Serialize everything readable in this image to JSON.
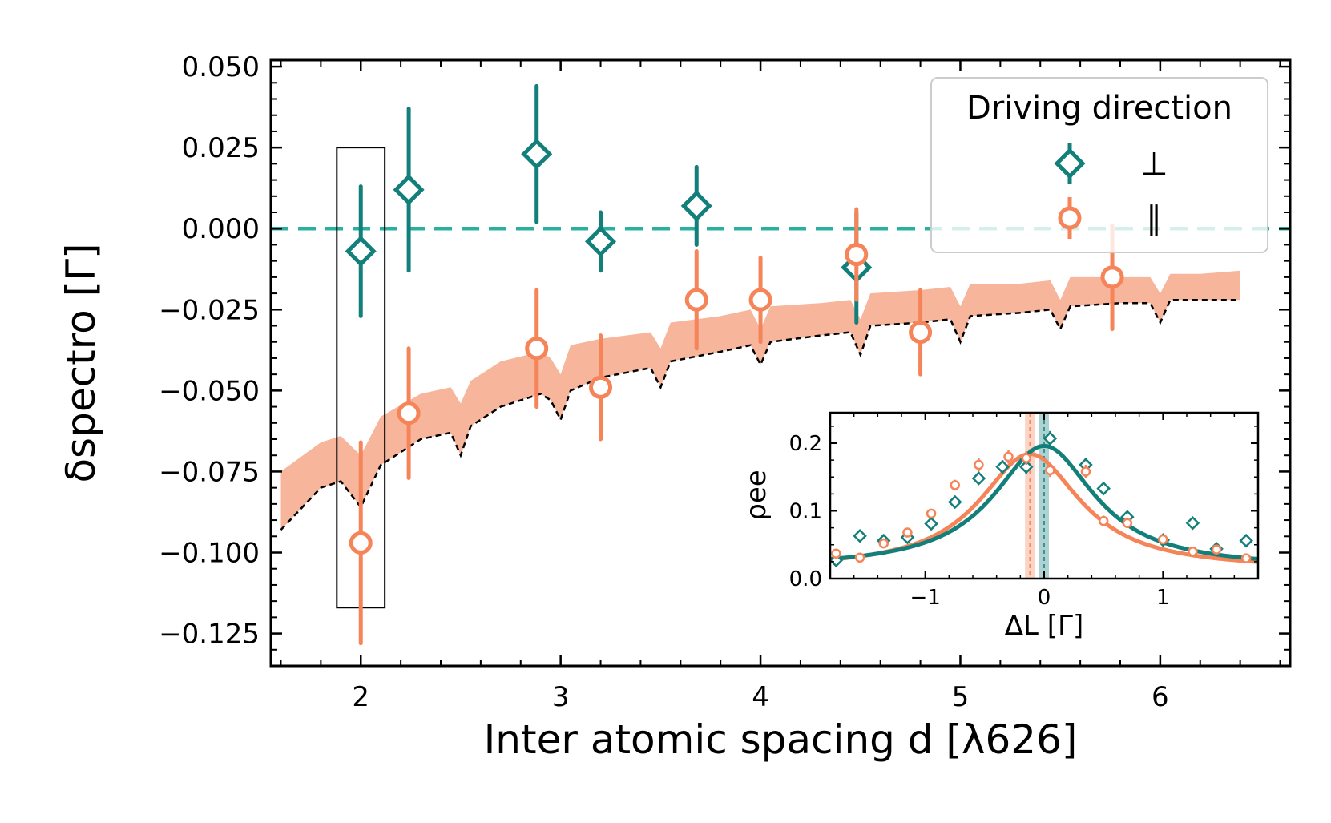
{
  "chart_data": [
    {
      "type": "scatter",
      "title": "",
      "xlabel": "Inter atomic spacing d [λ626]",
      "ylabel": "δspectro [Γ]",
      "xlim": [
        1.55,
        6.65
      ],
      "ylim": [
        -0.135,
        0.052
      ],
      "xticks": [
        "2",
        "3",
        "4",
        "5",
        "6"
      ],
      "yticks": [
        "0.050",
        "0.025",
        "0.000",
        "−0.025",
        "−0.050",
        "−0.075",
        "−0.100",
        "−0.125"
      ],
      "legend": {
        "title": "Driving direction",
        "placement": "top-right",
        "entries": [
          "⊥",
          "∥"
        ]
      },
      "series": [
        {
          "name": "⊥",
          "color": "#137f7a",
          "marker": "diamond",
          "points": [
            {
              "x": 2.0,
              "y": -0.007,
              "err": 0.02
            },
            {
              "x": 2.24,
              "y": 0.012,
              "err": 0.025
            },
            {
              "x": 2.88,
              "y": 0.023,
              "err": 0.021
            },
            {
              "x": 3.2,
              "y": -0.004,
              "err": 0.009
            },
            {
              "x": 3.68,
              "y": 0.007,
              "err": 0.012
            },
            {
              "x": 4.48,
              "y": -0.012,
              "err": 0.017
            }
          ]
        },
        {
          "name": "∥",
          "color": "#f58459",
          "marker": "circle",
          "points": [
            {
              "x": 2.0,
              "y": -0.097,
              "err": 0.031
            },
            {
              "x": 2.24,
              "y": -0.057,
              "err": 0.02
            },
            {
              "x": 2.88,
              "y": -0.037,
              "err": 0.018
            },
            {
              "x": 3.2,
              "y": -0.049,
              "err": 0.016
            },
            {
              "x": 3.68,
              "y": -0.022,
              "err": 0.015
            },
            {
              "x": 4.0,
              "y": -0.022,
              "err": 0.013
            },
            {
              "x": 4.48,
              "y": -0.008,
              "err": 0.014
            },
            {
              "x": 4.8,
              "y": -0.032,
              "err": 0.013
            },
            {
              "x": 5.76,
              "y": -0.015,
              "err": 0.016
            }
          ]
        }
      ],
      "reference_line": {
        "y": 0.0,
        "style": "dashed",
        "color": "#2bb0a0"
      },
      "theory_band": {
        "color": "#f7b196",
        "x": [
          1.6,
          1.8,
          1.9,
          2.0,
          2.1,
          2.3,
          2.45,
          2.5,
          2.55,
          2.7,
          2.9,
          2.95,
          3.0,
          3.05,
          3.2,
          3.45,
          3.5,
          3.55,
          3.8,
          3.95,
          4.0,
          4.05,
          4.3,
          4.45,
          4.5,
          4.55,
          4.8,
          4.95,
          5.0,
          5.05,
          5.3,
          5.45,
          5.5,
          5.55,
          5.8,
          5.95,
          6.0,
          6.05,
          6.2,
          6.4
        ],
        "lower": [
          -0.093,
          -0.08,
          -0.078,
          -0.086,
          -0.073,
          -0.065,
          -0.063,
          -0.07,
          -0.061,
          -0.055,
          -0.051,
          -0.053,
          -0.059,
          -0.05,
          -0.046,
          -0.043,
          -0.049,
          -0.041,
          -0.038,
          -0.036,
          -0.042,
          -0.035,
          -0.033,
          -0.032,
          -0.039,
          -0.03,
          -0.029,
          -0.028,
          -0.035,
          -0.027,
          -0.026,
          -0.025,
          -0.031,
          -0.024,
          -0.023,
          -0.023,
          -0.029,
          -0.022,
          -0.022,
          -0.022
        ],
        "upper": [
          -0.075,
          -0.066,
          -0.064,
          -0.07,
          -0.058,
          -0.051,
          -0.049,
          -0.054,
          -0.047,
          -0.041,
          -0.038,
          -0.04,
          -0.045,
          -0.036,
          -0.034,
          -0.032,
          -0.037,
          -0.029,
          -0.027,
          -0.025,
          -0.031,
          -0.024,
          -0.023,
          -0.022,
          -0.028,
          -0.02,
          -0.019,
          -0.018,
          -0.024,
          -0.017,
          -0.017,
          -0.016,
          -0.022,
          -0.015,
          -0.015,
          -0.015,
          -0.02,
          -0.014,
          -0.014,
          -0.013
        ]
      },
      "theory_curve": {
        "style": "dashed",
        "color": "#000000",
        "x": [
          1.6,
          1.8,
          1.9,
          2.0,
          2.1,
          2.3,
          2.45,
          2.5,
          2.55,
          2.7,
          2.9,
          2.95,
          3.0,
          3.05,
          3.2,
          3.45,
          3.5,
          3.55,
          3.8,
          3.95,
          4.0,
          4.05,
          4.3,
          4.45,
          4.5,
          4.55,
          4.8,
          4.95,
          5.0,
          5.05,
          5.3,
          5.45,
          5.5,
          5.55,
          5.8,
          5.95,
          6.0,
          6.05,
          6.2,
          6.4
        ],
        "y": [
          -0.093,
          -0.08,
          -0.078,
          -0.086,
          -0.073,
          -0.065,
          -0.063,
          -0.07,
          -0.061,
          -0.055,
          -0.051,
          -0.053,
          -0.059,
          -0.05,
          -0.046,
          -0.043,
          -0.049,
          -0.041,
          -0.038,
          -0.036,
          -0.042,
          -0.035,
          -0.033,
          -0.032,
          -0.039,
          -0.03,
          -0.029,
          -0.028,
          -0.035,
          -0.027,
          -0.026,
          -0.025,
          -0.031,
          -0.024,
          -0.023,
          -0.023,
          -0.029,
          -0.022,
          -0.022,
          -0.022
        ]
      },
      "highlight_box": {
        "x": [
          1.88,
          2.12
        ],
        "y": [
          -0.117,
          0.025
        ]
      }
    },
    {
      "type": "scatter",
      "title": "",
      "xlabel": "ΔL [Γ]",
      "ylabel": "ρee",
      "xlim": [
        -1.8,
        1.8
      ],
      "ylim": [
        0.0,
        0.245
      ],
      "xticks": [
        "−1",
        "0",
        "1"
      ],
      "yticks": [
        "0.0",
        "0.1",
        "0.2"
      ],
      "series": [
        {
          "name": "⊥",
          "color": "#137f7a",
          "marker": "diamond",
          "points": [
            {
              "x": -1.75,
              "y": 0.027,
              "err": 0.006
            },
            {
              "x": -1.55,
              "y": 0.063,
              "err": 0.006
            },
            {
              "x": -1.35,
              "y": 0.056,
              "err": 0.006
            },
            {
              "x": -1.15,
              "y": 0.061,
              "err": 0.006
            },
            {
              "x": -0.95,
              "y": 0.081,
              "err": 0.007
            },
            {
              "x": -0.75,
              "y": 0.113,
              "err": 0.008
            },
            {
              "x": -0.55,
              "y": 0.148,
              "err": 0.009
            },
            {
              "x": -0.35,
              "y": 0.165,
              "err": 0.01
            },
            {
              "x": -0.15,
              "y": 0.165,
              "err": 0.01
            },
            {
              "x": 0.05,
              "y": 0.207,
              "err": 0.011
            },
            {
              "x": 0.35,
              "y": 0.168,
              "err": 0.01
            },
            {
              "x": 0.5,
              "y": 0.133,
              "err": 0.009
            },
            {
              "x": 0.7,
              "y": 0.091,
              "err": 0.008
            },
            {
              "x": 1.0,
              "y": 0.057,
              "err": 0.006
            },
            {
              "x": 1.25,
              "y": 0.082,
              "err": 0.007
            },
            {
              "x": 1.45,
              "y": 0.044,
              "err": 0.006
            },
            {
              "x": 1.7,
              "y": 0.056,
              "err": 0.006
            }
          ],
          "fit_center": 0.0,
          "fit_peak": 0.196,
          "fit_hwhm": 0.52,
          "fit_offset": 0.015
        },
        {
          "name": "∥",
          "color": "#f58459",
          "marker": "circle",
          "points": [
            {
              "x": -1.75,
              "y": 0.037,
              "err": 0.006
            },
            {
              "x": -1.55,
              "y": 0.031,
              "err": 0.006
            },
            {
              "x": -1.35,
              "y": 0.052,
              "err": 0.006
            },
            {
              "x": -1.15,
              "y": 0.068,
              "err": 0.006
            },
            {
              "x": -0.95,
              "y": 0.096,
              "err": 0.007
            },
            {
              "x": -0.75,
              "y": 0.138,
              "err": 0.008
            },
            {
              "x": -0.55,
              "y": 0.168,
              "err": 0.01
            },
            {
              "x": -0.3,
              "y": 0.18,
              "err": 0.01
            },
            {
              "x": -0.15,
              "y": 0.178,
              "err": 0.01
            },
            {
              "x": 0.05,
              "y": 0.16,
              "err": 0.01
            },
            {
              "x": 0.35,
              "y": 0.158,
              "err": 0.01
            },
            {
              "x": 0.5,
              "y": 0.085,
              "err": 0.008
            },
            {
              "x": 0.7,
              "y": 0.082,
              "err": 0.007
            },
            {
              "x": 1.0,
              "y": 0.058,
              "err": 0.006
            },
            {
              "x": 1.25,
              "y": 0.04,
              "err": 0.006
            },
            {
              "x": 1.45,
              "y": 0.043,
              "err": 0.006
            },
            {
              "x": 1.7,
              "y": 0.03,
              "err": 0.006
            }
          ],
          "fit_center": -0.12,
          "fit_peak": 0.184,
          "fit_hwhm": 0.52,
          "fit_offset": 0.013
        }
      ],
      "center_lines": [
        {
          "x": 0.0,
          "color": "#137f7a"
        },
        {
          "x": -0.12,
          "color": "#f58459"
        }
      ]
    }
  ]
}
